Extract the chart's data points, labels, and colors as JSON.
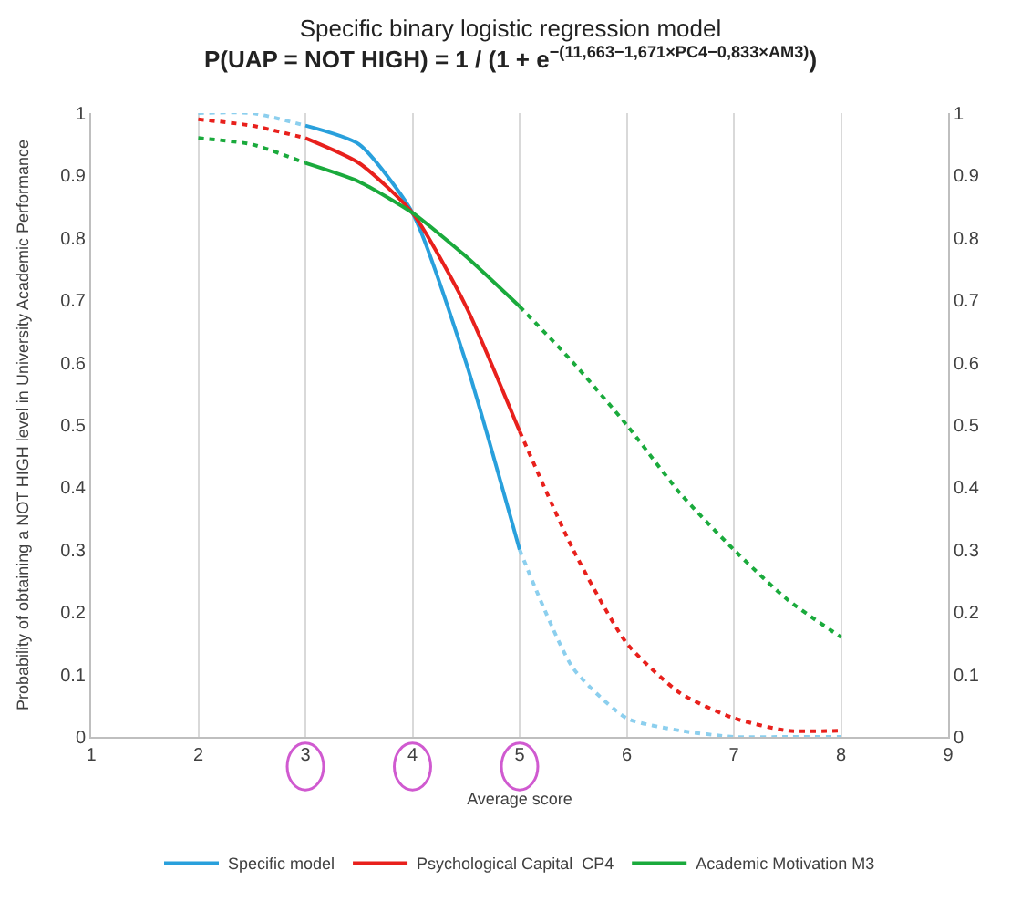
{
  "chart_data": {
    "type": "line",
    "title": "Specific binary logistic regression model",
    "subtitle": "P(UAP = NOT HIGH) = 1 / (1 + e$^{−(11,663−1,671×PC4−0,833×AM3)}$)",
    "xlabel": "Average score",
    "ylabel": "Probability of obtaining a NOT HIGH level in University Academic Performance",
    "xlim": [
      1,
      9
    ],
    "xticks": [
      1,
      2,
      3,
      4,
      5,
      6,
      7,
      8,
      9
    ],
    "ylim": [
      0,
      1
    ],
    "yticks": [
      0,
      0.1,
      0.2,
      0.3,
      0.4,
      0.5,
      0.6,
      0.7,
      0.8,
      0.9,
      1
    ],
    "y2lim": [
      0,
      1
    ],
    "y2ticks": [
      0,
      0.1,
      0.2,
      0.3,
      0.4,
      0.5,
      0.6,
      0.7,
      0.8,
      0.9,
      1
    ],
    "grid": "x",
    "legend": "bottom",
    "marker": "none",
    "series": [
      {
        "color": "#8ccfee",
        "line_style": "dotted",
        "x": [
          2,
          2.5,
          3
        ],
        "values": [
          1.0,
          1.0,
          0.98
        ]
      },
      {
        "name": "Specific model",
        "color": "#29a0dc",
        "line_style": "solid",
        "x": [
          3,
          3.5,
          4,
          4.5,
          5
        ],
        "values": [
          0.98,
          0.95,
          0.84,
          0.6,
          0.3
        ]
      },
      {
        "color": "#8ccfee",
        "line_style": "dotted",
        "x": [
          5,
          5.5,
          6,
          6.5,
          7,
          7.5,
          8
        ],
        "values": [
          0.3,
          0.11,
          0.03,
          0.01,
          0.0,
          0.0,
          0.0
        ]
      },
      {
        "color": "#e8201c",
        "line_style": "dotted",
        "x": [
          2,
          2.5,
          3
        ],
        "values": [
          0.99,
          0.98,
          0.96
        ]
      },
      {
        "name": "Psychological Capital  CP4",
        "color": "#e8201c",
        "line_style": "solid",
        "x": [
          3,
          3.5,
          4,
          4.5,
          5
        ],
        "values": [
          0.96,
          0.92,
          0.84,
          0.69,
          0.49
        ]
      },
      {
        "color": "#e8201c",
        "line_style": "dotted",
        "x": [
          5,
          5.5,
          6,
          6.5,
          7,
          7.5,
          8
        ],
        "values": [
          0.49,
          0.3,
          0.15,
          0.07,
          0.03,
          0.01,
          0.01
        ]
      },
      {
        "color": "#1aaa3c",
        "line_style": "dotted",
        "x": [
          2,
          2.5,
          3
        ],
        "values": [
          0.96,
          0.95,
          0.92
        ]
      },
      {
        "name": "Academic Motivation M3",
        "color": "#1aaa3c",
        "line_style": "solid",
        "x": [
          3,
          3.5,
          4,
          4.5,
          5
        ],
        "values": [
          0.92,
          0.89,
          0.84,
          0.77,
          0.69
        ]
      },
      {
        "color": "#1aaa3c",
        "line_style": "dotted",
        "x": [
          5,
          5.5,
          6,
          6.5,
          7,
          7.5,
          8
        ],
        "values": [
          0.69,
          0.6,
          0.5,
          0.39,
          0.3,
          0.22,
          0.16
        ]
      }
    ]
  }
}
